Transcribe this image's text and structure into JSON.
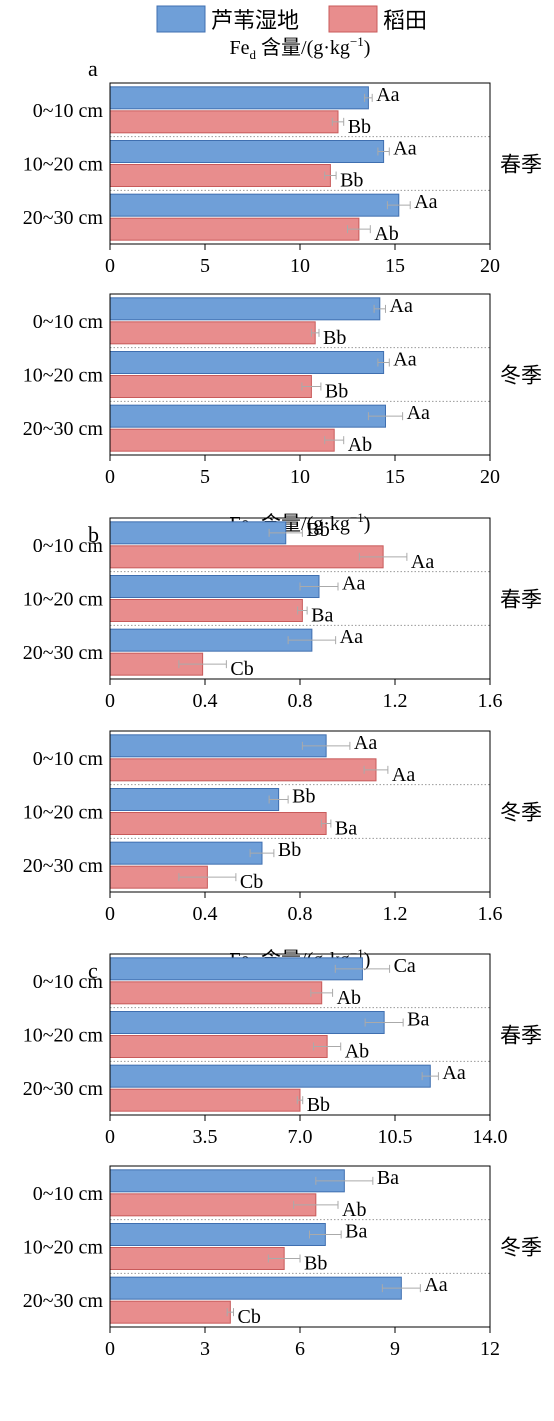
{
  "legend": {
    "items": [
      {
        "label": "芦苇湿地",
        "color": "#6f9fd8"
      },
      {
        "label": "稻田",
        "color": "#e88d8d"
      }
    ]
  },
  "colors": {
    "reed_fill": "#6f9fd8",
    "reed_stroke": "#3f6fb0",
    "paddy_fill": "#e88d8d",
    "paddy_stroke": "#c85a5a"
  },
  "chart_data": [
    {
      "panel": "a",
      "title_main": "Fe",
      "title_sub": "d",
      "title_tail": " 含量/(g·kg",
      "title_sup": "−1",
      "title_end": ")",
      "season": "春季",
      "type": "bar",
      "orientation": "horizontal",
      "categories": [
        "0~10 cm",
        "10~20 cm",
        "20~30 cm"
      ],
      "xlim": [
        0,
        20
      ],
      "ticks": [
        "0",
        "5",
        "10",
        "15",
        "20"
      ],
      "tick_values": [
        0,
        5,
        10,
        15,
        20
      ],
      "series": [
        {
          "name": "芦苇湿地",
          "values": [
            13.6,
            14.4,
            15.2
          ],
          "errors": [
            0.2,
            0.3,
            0.6
          ],
          "labels": [
            "Aa",
            "Aa",
            "Aa"
          ]
        },
        {
          "name": "稻田",
          "values": [
            12.0,
            11.6,
            13.1
          ],
          "errors": [
            0.3,
            0.3,
            0.6
          ],
          "labels": [
            "Bb",
            "Bb",
            "Ab"
          ]
        }
      ]
    },
    {
      "panel": "",
      "season": "冬季",
      "type": "bar",
      "orientation": "horizontal",
      "categories": [
        "0~10 cm",
        "10~20 cm",
        "20~30 cm"
      ],
      "xlim": [
        0,
        20
      ],
      "ticks": [
        "0",
        "5",
        "10",
        "15",
        "20"
      ],
      "tick_values": [
        0,
        5,
        10,
        15,
        20
      ],
      "series": [
        {
          "name": "芦苇湿地",
          "values": [
            14.2,
            14.4,
            14.5
          ],
          "errors": [
            0.3,
            0.3,
            0.9
          ],
          "labels": [
            "Aa",
            "Aa",
            "Aa"
          ]
        },
        {
          "name": "稻田",
          "values": [
            10.8,
            10.6,
            11.8
          ],
          "errors": [
            0.2,
            0.5,
            0.5
          ],
          "labels": [
            "Bb",
            "Bb",
            "Ab"
          ]
        }
      ]
    },
    {
      "panel": "b",
      "title_main": "Fe",
      "title_sub": "p",
      "title_tail": " 含量/(g·kg",
      "title_sup": "−1",
      "title_end": ")",
      "season": "春季",
      "type": "bar",
      "orientation": "horizontal",
      "categories": [
        "0~10 cm",
        "10~20 cm",
        "20~30 cm"
      ],
      "xlim": [
        0,
        1.6
      ],
      "ticks": [
        "0",
        "0.4",
        "0.8",
        "1.2",
        "1.6"
      ],
      "tick_values": [
        0,
        0.4,
        0.8,
        1.2,
        1.6
      ],
      "series": [
        {
          "name": "芦苇湿地",
          "values": [
            0.74,
            0.88,
            0.85
          ],
          "errors": [
            0.07,
            0.08,
            0.1
          ],
          "labels": [
            "Bb",
            "Aa",
            "Aa"
          ]
        },
        {
          "name": "稻田",
          "values": [
            1.15,
            0.81,
            0.39
          ],
          "errors": [
            0.1,
            0.02,
            0.1
          ],
          "labels": [
            "Aa",
            "Ba",
            "Cb"
          ]
        }
      ]
    },
    {
      "panel": "",
      "season": "冬季",
      "type": "bar",
      "orientation": "horizontal",
      "categories": [
        "0~10 cm",
        "10~20 cm",
        "20~30 cm"
      ],
      "xlim": [
        0,
        1.6
      ],
      "ticks": [
        "0",
        "0.4",
        "0.8",
        "1.2",
        "1.6"
      ],
      "tick_values": [
        0,
        0.4,
        0.8,
        1.2,
        1.6
      ],
      "series": [
        {
          "name": "芦苇湿地",
          "values": [
            0.91,
            0.71,
            0.64
          ],
          "errors": [
            0.1,
            0.04,
            0.05
          ],
          "labels": [
            "Aa",
            "Bb",
            "Bb"
          ]
        },
        {
          "name": "稻田",
          "values": [
            1.12,
            0.91,
            0.41
          ],
          "errors": [
            0.05,
            0.02,
            0.12
          ],
          "labels": [
            "Aa",
            "Ba",
            "Cb"
          ]
        }
      ]
    },
    {
      "panel": "c",
      "title_main": "Fe",
      "title_sub": "o",
      "title_tail": " 含量/(g·kg",
      "title_sup": "−1",
      "title_end": ")",
      "season": "春季",
      "type": "bar",
      "orientation": "horizontal",
      "categories": [
        "0~10 cm",
        "10~20 cm",
        "20~30 cm"
      ],
      "xlim": [
        0,
        14
      ],
      "ticks": [
        "0",
        "3.5",
        "7.0",
        "10.5",
        "14.0"
      ],
      "tick_values": [
        0,
        3.5,
        7.0,
        10.5,
        14.0
      ],
      "series": [
        {
          "name": "芦苇湿地",
          "values": [
            9.3,
            10.1,
            11.8
          ],
          "errors": [
            1.0,
            0.7,
            0.3
          ],
          "labels": [
            "Ca",
            "Ba",
            "Aa"
          ]
        },
        {
          "name": "稻田",
          "values": [
            7.8,
            8.0,
            7.0
          ],
          "errors": [
            0.4,
            0.5,
            0.1
          ],
          "labels": [
            "Ab",
            "Ab",
            "Bb"
          ]
        }
      ]
    },
    {
      "panel": "",
      "season": "冬季",
      "type": "bar",
      "orientation": "horizontal",
      "categories": [
        "0~10 cm",
        "10~20 cm",
        "20~30 cm"
      ],
      "xlim": [
        0,
        12
      ],
      "ticks": [
        "0",
        "3",
        "6",
        "9",
        "12"
      ],
      "tick_values": [
        0,
        3,
        6,
        9,
        12
      ],
      "series": [
        {
          "name": "芦苇湿地",
          "values": [
            7.4,
            6.8,
            9.2
          ],
          "errors": [
            0.9,
            0.5,
            0.6
          ],
          "labels": [
            "Ba",
            "Ba",
            "Aa"
          ]
        },
        {
          "name": "稻田",
          "values": [
            6.5,
            5.5,
            3.8
          ],
          "errors": [
            0.7,
            0.5,
            0.1
          ],
          "labels": [
            "Ab",
            "Bb",
            "Cb"
          ]
        }
      ]
    }
  ]
}
